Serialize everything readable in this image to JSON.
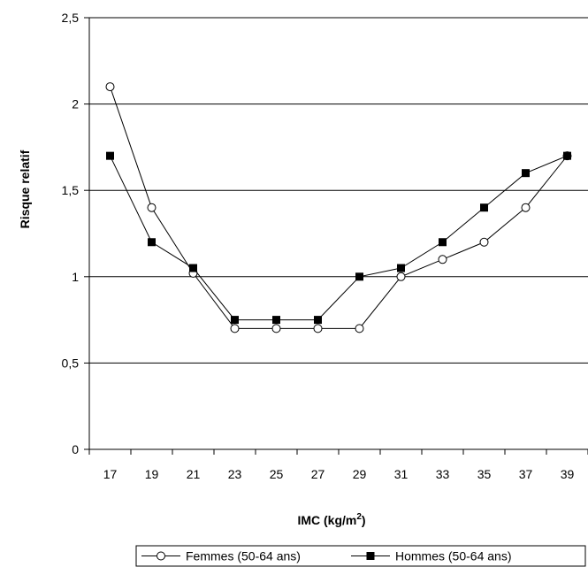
{
  "chart_data": {
    "type": "line",
    "x": [
      17,
      19,
      21,
      23,
      25,
      27,
      29,
      31,
      33,
      35,
      37,
      39
    ],
    "series": [
      {
        "name": "Femmes (50-64 ans)",
        "marker": "open-circle",
        "color": "#000000",
        "values": [
          2.1,
          1.4,
          1.02,
          0.7,
          0.7,
          0.7,
          0.7,
          1.0,
          1.1,
          1.2,
          1.4,
          1.7
        ]
      },
      {
        "name": "Hommes (50-64 ans)",
        "marker": "filled-square",
        "color": "#000000",
        "values": [
          1.7,
          1.2,
          1.05,
          0.75,
          0.75,
          0.75,
          1.0,
          1.05,
          1.2,
          1.4,
          1.6,
          1.7
        ]
      }
    ],
    "title": "",
    "xlabel": "IMC (kg/m",
    "xlabel_superscript": "2",
    "xlabel_suffix": ")",
    "ylabel": "Risque relatif",
    "ylim": [
      0,
      2.5
    ],
    "yticks": [
      0,
      0.5,
      1,
      1.5,
      2,
      2.5
    ],
    "ytick_labels": [
      "0",
      "0,5",
      "1",
      "1,5",
      "2",
      "2,5"
    ],
    "xtick_labels": [
      "17",
      "19",
      "21",
      "23",
      "25",
      "27",
      "29",
      "31",
      "33",
      "35",
      "37",
      "39"
    ],
    "grid": true,
    "legend_position": "bottom-center"
  }
}
